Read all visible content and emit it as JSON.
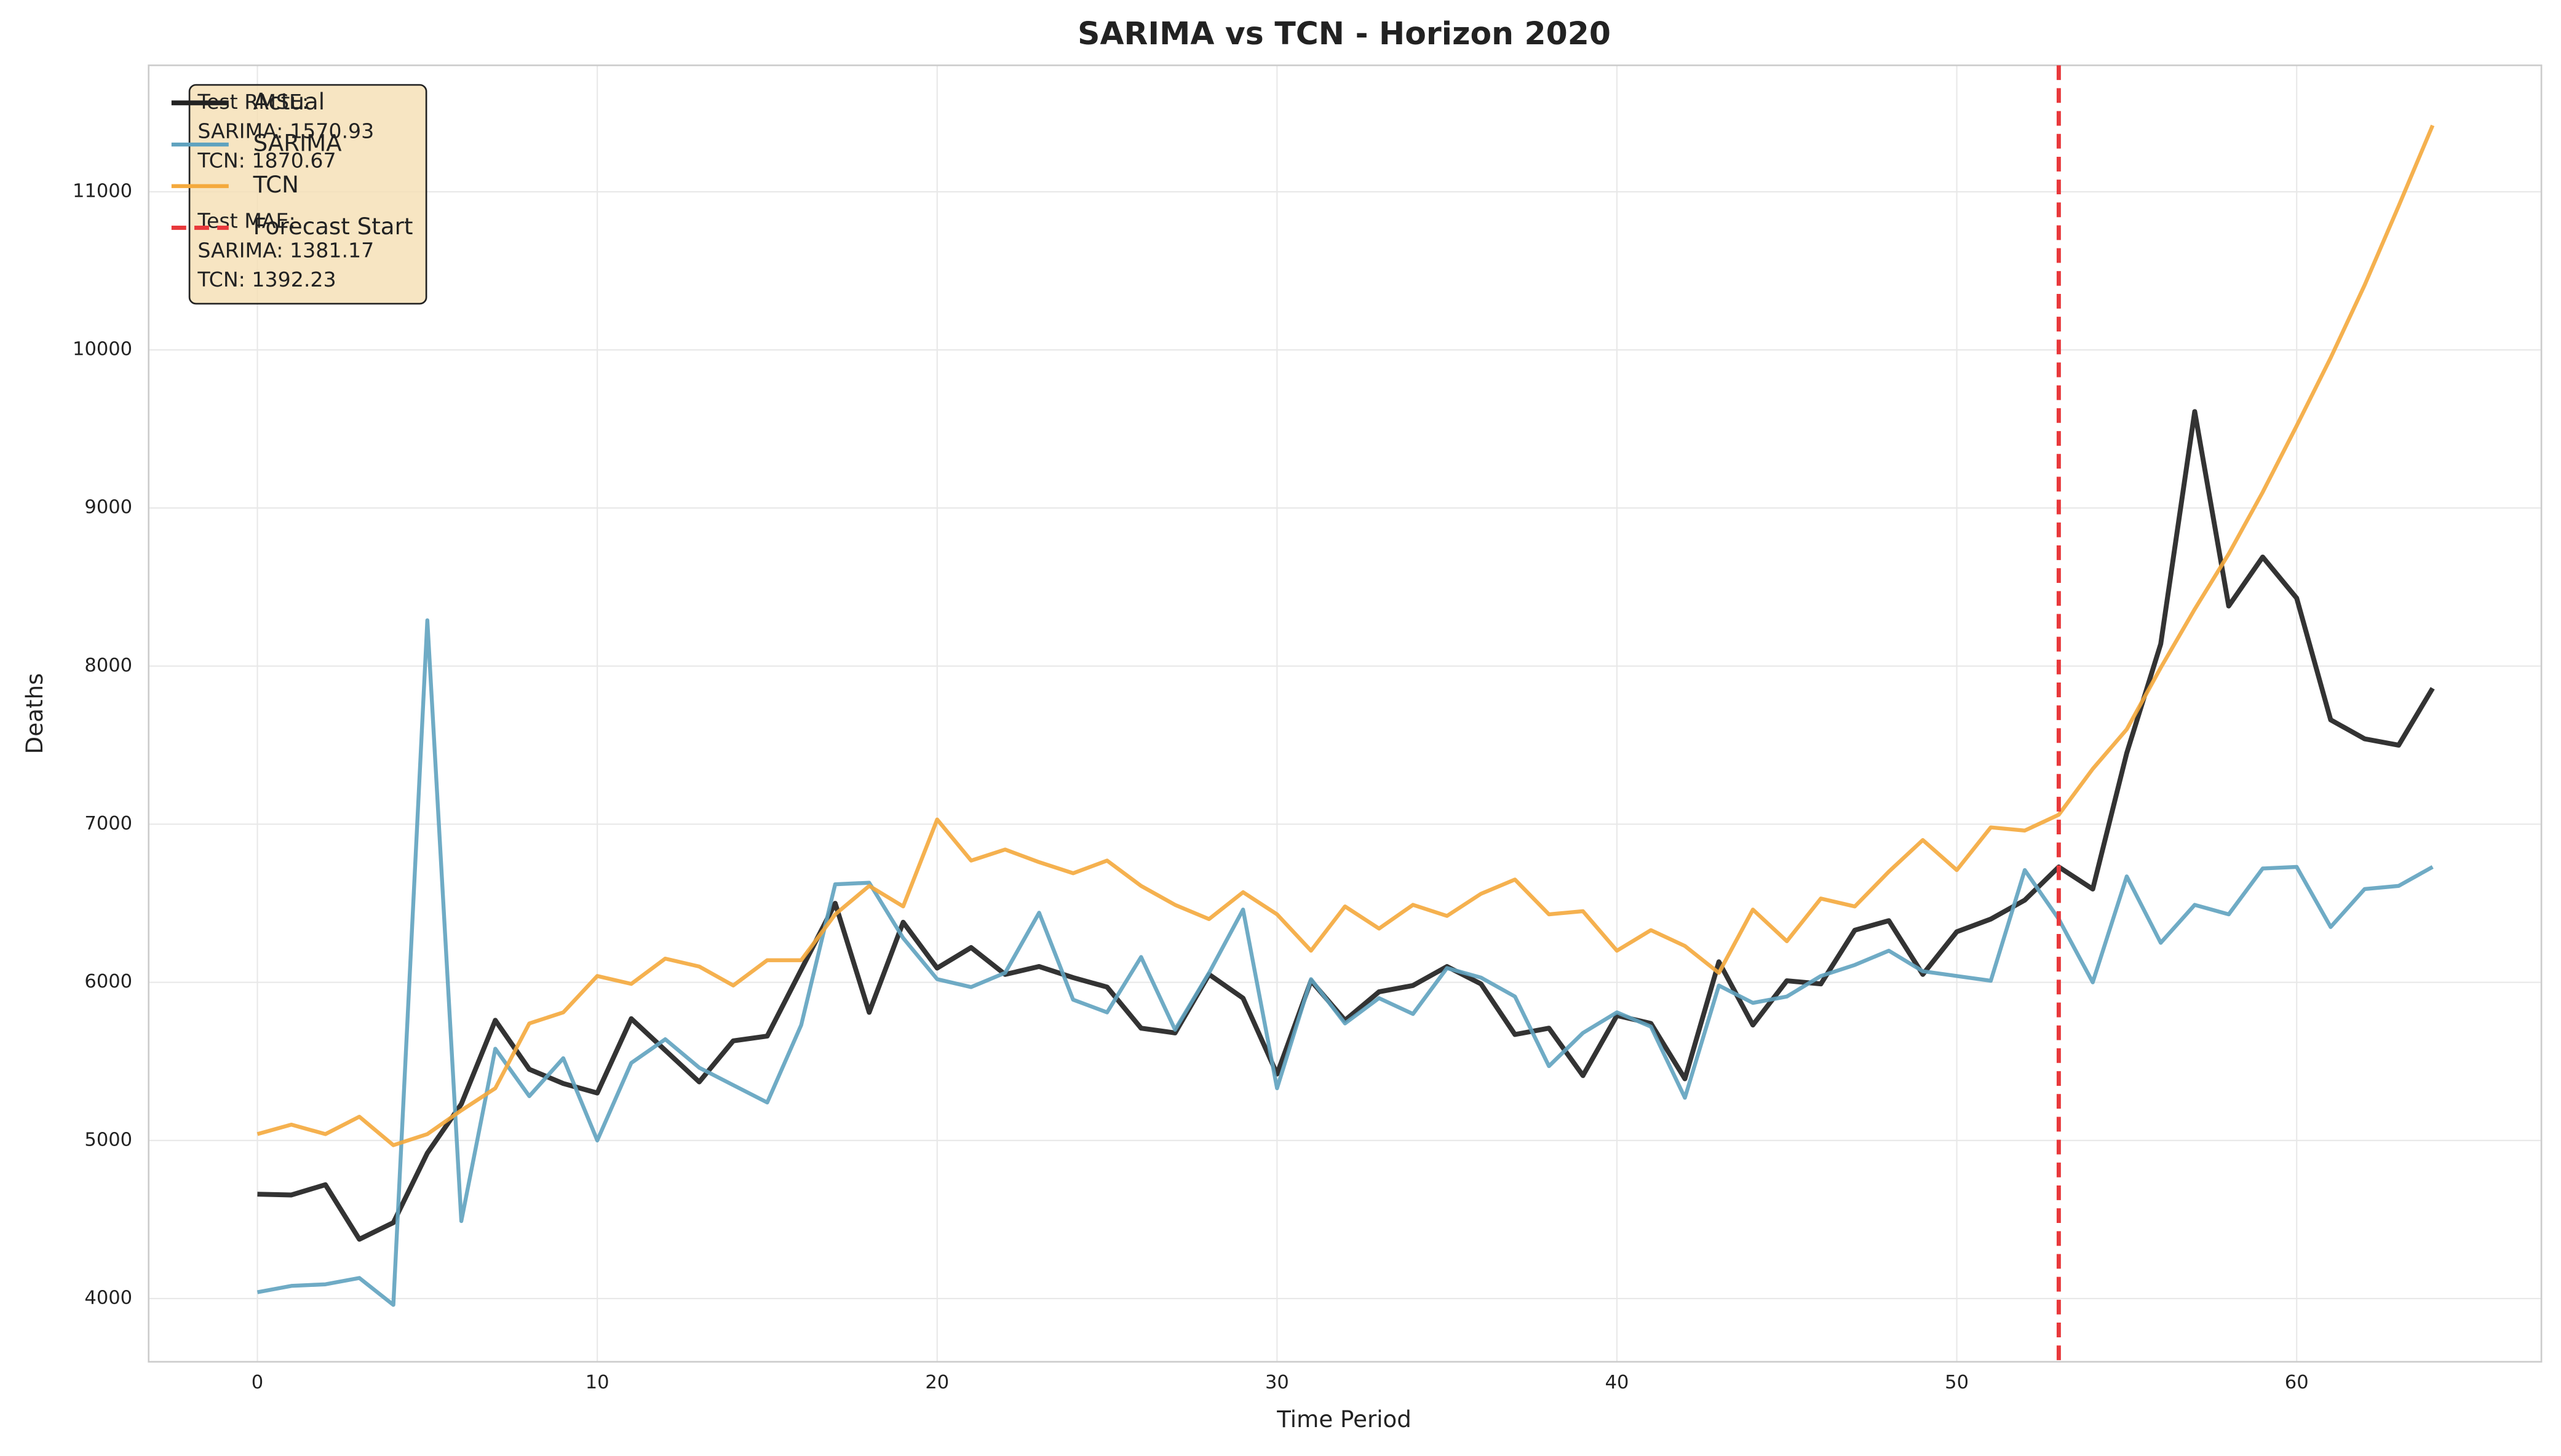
{
  "chart_data": {
    "type": "line",
    "title": "SARIMA vs TCN - Horizon 2020",
    "x_label": "Time Period",
    "y_label": "Deaths",
    "x": [
      0,
      1,
      2,
      3,
      4,
      5,
      6,
      7,
      8,
      9,
      10,
      11,
      12,
      13,
      14,
      15,
      16,
      17,
      18,
      19,
      20,
      21,
      22,
      23,
      24,
      25,
      26,
      27,
      28,
      29,
      30,
      31,
      32,
      33,
      34,
      35,
      36,
      37,
      38,
      39,
      40,
      41,
      42,
      43,
      44,
      45,
      46,
      47,
      48,
      49,
      50,
      51,
      52,
      53,
      54,
      55,
      56,
      57,
      58,
      59,
      60,
      61,
      62,
      63,
      64
    ],
    "series": [
      {
        "name": "Actual",
        "color": "#222222",
        "values": [
          4660,
          4655,
          4720,
          4375,
          4480,
          4920,
          5230,
          5760,
          5450,
          5360,
          5300,
          5770,
          5570,
          5370,
          5630,
          5660,
          6080,
          6500,
          5810,
          6380,
          6090,
          6220,
          6050,
          6100,
          6030,
          5970,
          5710,
          5680,
          6050,
          5900,
          5420,
          6010,
          5760,
          5940,
          5980,
          6100,
          5990,
          5670,
          5710,
          5410,
          5790,
          5740,
          5390,
          6130,
          5730,
          6010,
          5990,
          6330,
          6390,
          6050,
          6320,
          6400,
          6520,
          6730,
          6590,
          7450,
          8140,
          9610,
          8380,
          8690,
          8430,
          7660,
          7540,
          7500,
          7860
        ]
      },
      {
        "name": "SARIMA",
        "color": "#5fa2bf",
        "values": [
          4040,
          4080,
          4090,
          4130,
          3960,
          8290,
          4490,
          5580,
          5280,
          5520,
          5000,
          5490,
          5640,
          5460,
          5350,
          5240,
          5730,
          6620,
          6630,
          6280,
          6020,
          5970,
          6060,
          6440,
          5890,
          5810,
          6160,
          5700,
          6060,
          6460,
          5330,
          6020,
          5740,
          5900,
          5800,
          6090,
          6030,
          5910,
          5470,
          5680,
          5810,
          5720,
          5270,
          5980,
          5870,
          5910,
          6040,
          6110,
          6200,
          6070,
          6040,
          6010,
          6710,
          6400,
          6000,
          6670,
          6250,
          6490,
          6430,
          6720,
          6730,
          6350,
          6590,
          6610,
          6730
        ]
      },
      {
        "name": "TCN",
        "color": "#f4a93c",
        "values": [
          5040,
          5100,
          5040,
          5150,
          4970,
          5040,
          5190,
          5330,
          5740,
          5810,
          6040,
          5990,
          6150,
          6100,
          5980,
          6140,
          6140,
          6430,
          6610,
          6480,
          7030,
          6770,
          6840,
          6760,
          6690,
          6770,
          6610,
          6490,
          6400,
          6570,
          6430,
          6200,
          6480,
          6340,
          6490,
          6420,
          6560,
          6650,
          6430,
          6450,
          6200,
          6330,
          6230,
          6060,
          6460,
          6260,
          6530,
          6480,
          6700,
          6900,
          6710,
          6980,
          6960,
          7060,
          7350,
          7600,
          7990,
          8360,
          8710,
          9100,
          9520,
          9950,
          10410,
          10910,
          11420
        ]
      }
    ],
    "forecast_start": {
      "x": 53,
      "label": "Forecast Start",
      "color": "#e8383b"
    },
    "metrics": [
      {
        "title": "Test RMSE:",
        "lines": [
          "SARIMA: 1570.93",
          "TCN: 1870.67"
        ]
      },
      {
        "title": "Test MAE:",
        "lines": [
          "SARIMA: 1381.17",
          "TCN: 1392.23"
        ]
      }
    ],
    "xlim": [
      -3.2,
      67.2
    ],
    "ylim": [
      3600,
      11800
    ],
    "xticks": [
      0,
      10,
      20,
      30,
      40,
      50,
      60
    ],
    "yticks": [
      4000,
      5000,
      6000,
      7000,
      8000,
      9000,
      10000,
      11000
    ],
    "grid": true,
    "legend": "upper left"
  }
}
